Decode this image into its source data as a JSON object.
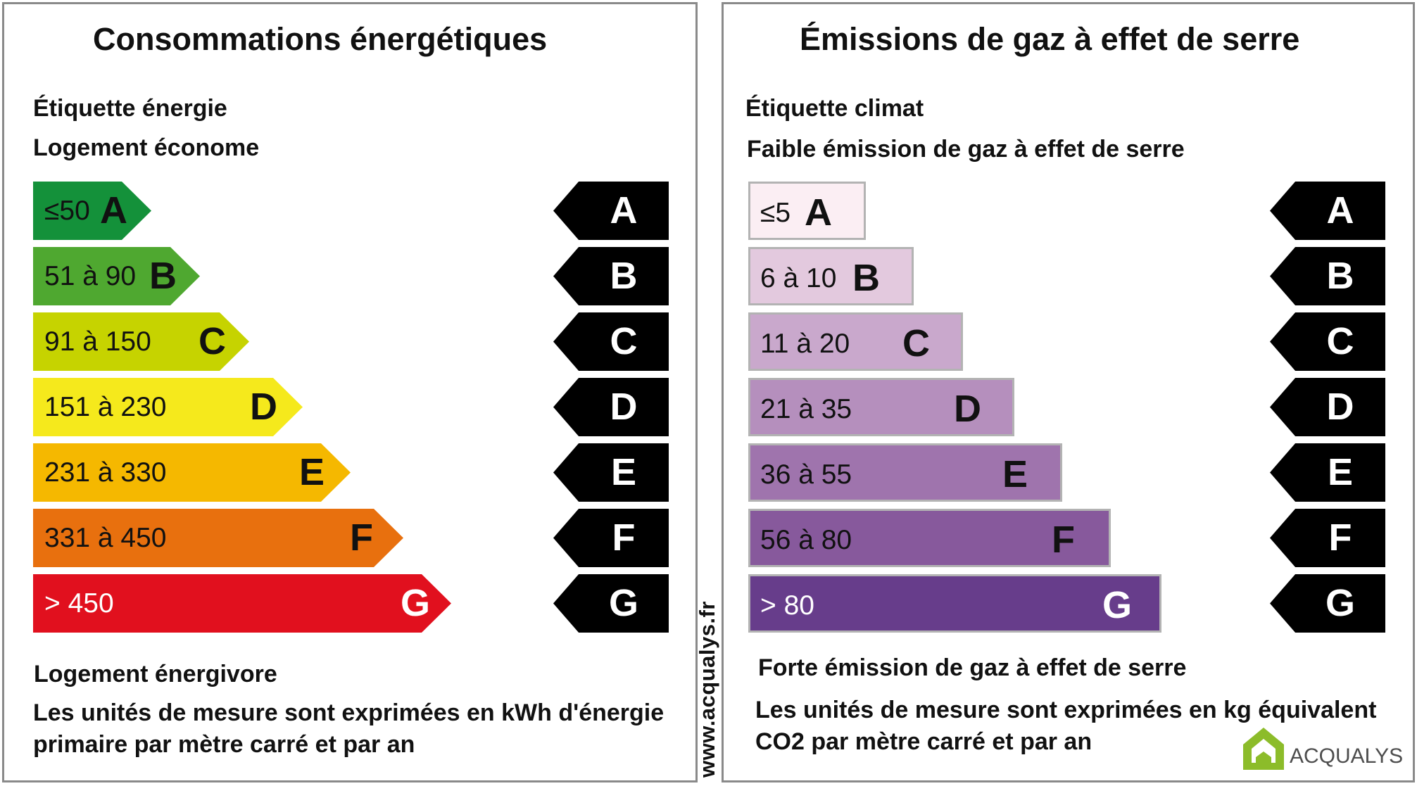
{
  "energy": {
    "title": "Consommations énergétiques",
    "label_top": "Étiquette énergie",
    "label_good": "Logement économe",
    "label_bad": "Logement énergivore",
    "units": [
      "Les unités de mesure sont exprimées en kWh d'énergie",
      "primaire par mètre carré et par an"
    ],
    "classes": [
      {
        "letter": "A",
        "range": "≤50",
        "color": "#14913a"
      },
      {
        "letter": "B",
        "range": "51 à 90",
        "color": "#4fa830"
      },
      {
        "letter": "C",
        "range": "91 à 150",
        "color": "#c6d300"
      },
      {
        "letter": "D",
        "range": "151 à 230",
        "color": "#f5e91c"
      },
      {
        "letter": "E",
        "range": "231 à 330",
        "color": "#f5b800"
      },
      {
        "letter": "F",
        "range": "331 à 450",
        "color": "#e8700e"
      },
      {
        "letter": "G",
        "range": "> 450",
        "color": "#e1101e"
      }
    ]
  },
  "climate": {
    "title": "Émissions de gaz à effet de serre",
    "label_top": "Étiquette climat",
    "label_good": "Faible émission de gaz à effet de serre",
    "label_bad": "Forte émission de gaz à effet de serre",
    "units": [
      "Les unités de mesure sont exprimées en kg équivalent",
      "CO2 par mètre carré et par an"
    ],
    "classes": [
      {
        "letter": "A",
        "range": "≤5",
        "color": "#fbeef3"
      },
      {
        "letter": "B",
        "range": "6 à 10",
        "color": "#e3c9de"
      },
      {
        "letter": "C",
        "range": "11 à 20",
        "color": "#c9a8cc"
      },
      {
        "letter": "D",
        "range": "21 à 35",
        "color": "#b58fbd"
      },
      {
        "letter": "E",
        "range": "36 à 55",
        "color": "#9f74ad"
      },
      {
        "letter": "F",
        "range": "56 à 80",
        "color": "#87599c"
      },
      {
        "letter": "G",
        "range": "> 80",
        "color": "#673d8b"
      }
    ]
  },
  "markers": [
    "A",
    "B",
    "C",
    "D",
    "E",
    "F",
    "G"
  ],
  "website": "www.acqualys.fr",
  "brand": {
    "name": "ACQUALYS",
    "color": "#8cbc2a"
  }
}
